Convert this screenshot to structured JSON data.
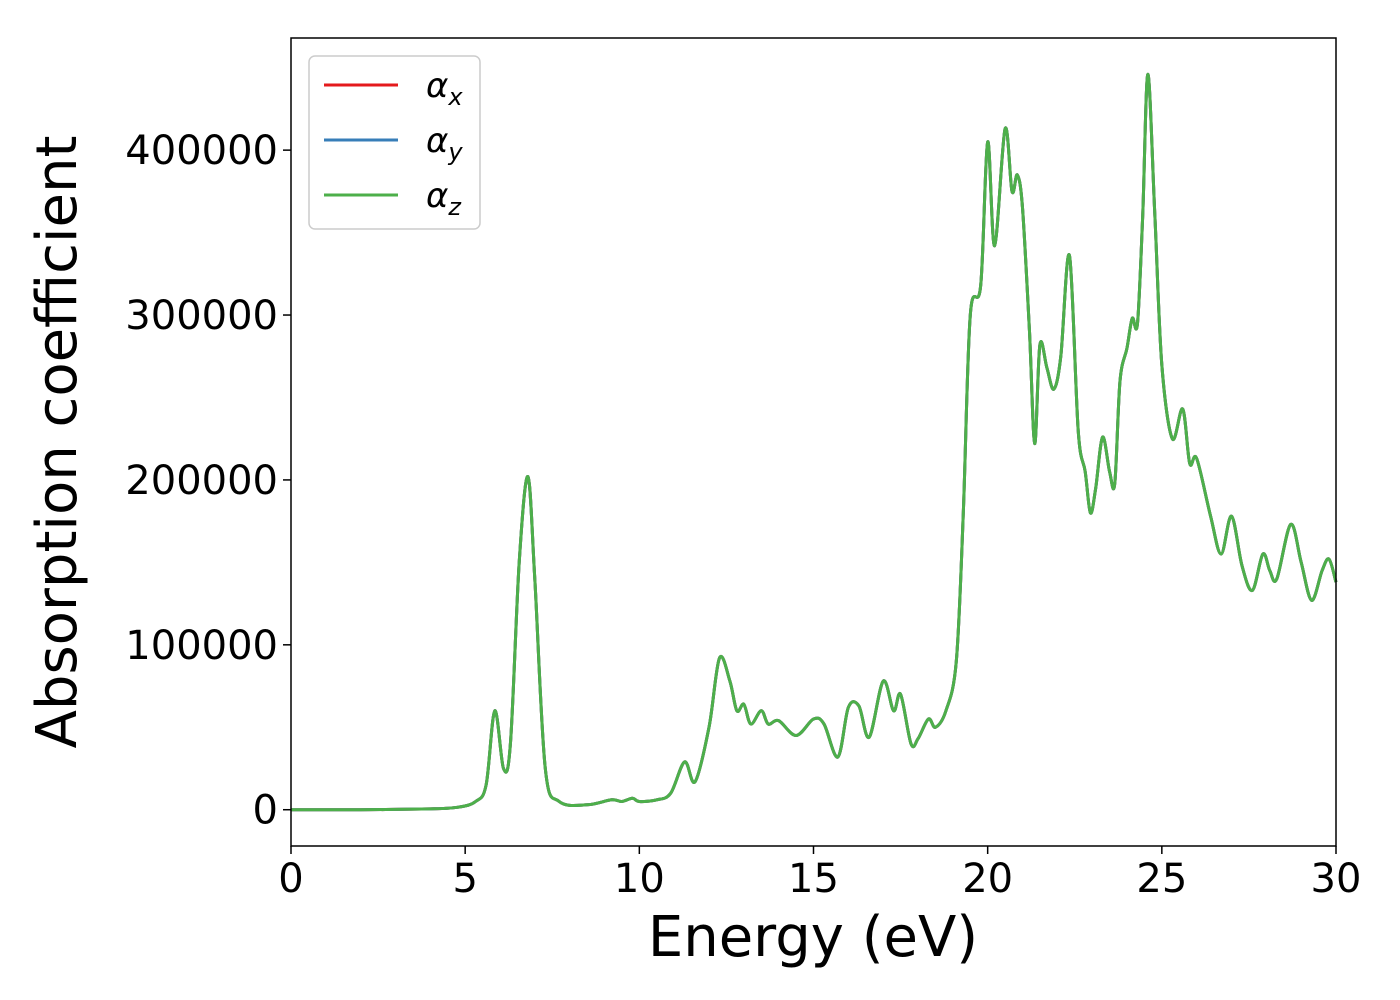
{
  "chart_data": {
    "type": "line",
    "xlabel": "Energy (eV)",
    "ylabel": "Absorption coefficient",
    "xlim": [
      0,
      30
    ],
    "ylim": [
      -22000,
      468000
    ],
    "xticks": [
      0,
      5,
      10,
      15,
      20,
      25,
      30
    ],
    "xtick_labels": [
      "0",
      "5",
      "10",
      "15",
      "20",
      "25",
      "30"
    ],
    "yticks": [
      0,
      100000,
      200000,
      300000,
      400000
    ],
    "ytick_labels": [
      "0",
      "100000",
      "200000",
      "300000",
      "400000"
    ],
    "grid": false,
    "legend_position": "top-left",
    "series": [
      {
        "name": "α",
        "subscript": "x",
        "color": "#e41a1c"
      },
      {
        "name": "α",
        "subscript": "y",
        "color": "#377eb8"
      },
      {
        "name": "α",
        "subscript": "z",
        "color": "#4daf4a"
      }
    ],
    "x": [
      0,
      2,
      4,
      4.8,
      5.3,
      5.6,
      5.85,
      6.1,
      6.3,
      6.55,
      6.8,
      7.0,
      7.3,
      7.7,
      8.5,
      9.2,
      9.5,
      9.8,
      10.0,
      10.5,
      10.9,
      11.3,
      11.6,
      12.0,
      12.3,
      12.6,
      12.8,
      13.0,
      13.2,
      13.5,
      13.7,
      14.0,
      14.5,
      15.0,
      15.3,
      15.7,
      16.0,
      16.3,
      16.6,
      17.0,
      17.3,
      17.5,
      17.8,
      18.0,
      18.3,
      18.5,
      18.8,
      19.1,
      19.3,
      19.5,
      19.8,
      20.0,
      20.2,
      20.5,
      20.7,
      20.85,
      21.0,
      21.2,
      21.35,
      21.5,
      21.7,
      21.9,
      22.1,
      22.35,
      22.6,
      22.8,
      22.95,
      23.1,
      23.3,
      23.5,
      23.65,
      23.8,
      24.0,
      24.15,
      24.3,
      24.45,
      24.6,
      24.8,
      25.0,
      25.3,
      25.6,
      25.8,
      26.0,
      26.4,
      26.7,
      27.0,
      27.3,
      27.6,
      27.9,
      28.1,
      28.3,
      28.7,
      29.0,
      29.3,
      29.6,
      29.8,
      30.0
    ],
    "values": [
      0,
      0,
      500,
      1500,
      5000,
      15000,
      60000,
      25000,
      40000,
      150000,
      202000,
      140000,
      25000,
      5000,
      3000,
      6000,
      5000,
      7000,
      5000,
      6000,
      10000,
      29000,
      17000,
      50000,
      92000,
      78000,
      60000,
      64000,
      52000,
      60000,
      52000,
      54000,
      45000,
      55000,
      52000,
      32000,
      62000,
      63000,
      44000,
      78000,
      60000,
      70000,
      40000,
      43000,
      55000,
      50000,
      60000,
      90000,
      180000,
      300000,
      318000,
      405000,
      342000,
      413000,
      375000,
      385000,
      365000,
      290000,
      222000,
      282000,
      268000,
      255000,
      275000,
      336000,
      230000,
      205000,
      180000,
      195000,
      226000,
      205000,
      198000,
      260000,
      280000,
      298000,
      295000,
      360000,
      446000,
      360000,
      270000,
      225000,
      243000,
      210000,
      213000,
      178000,
      155000,
      178000,
      148000,
      133000,
      155000,
      145000,
      140000,
      173000,
      150000,
      127000,
      145000,
      152000,
      138000
    ]
  }
}
